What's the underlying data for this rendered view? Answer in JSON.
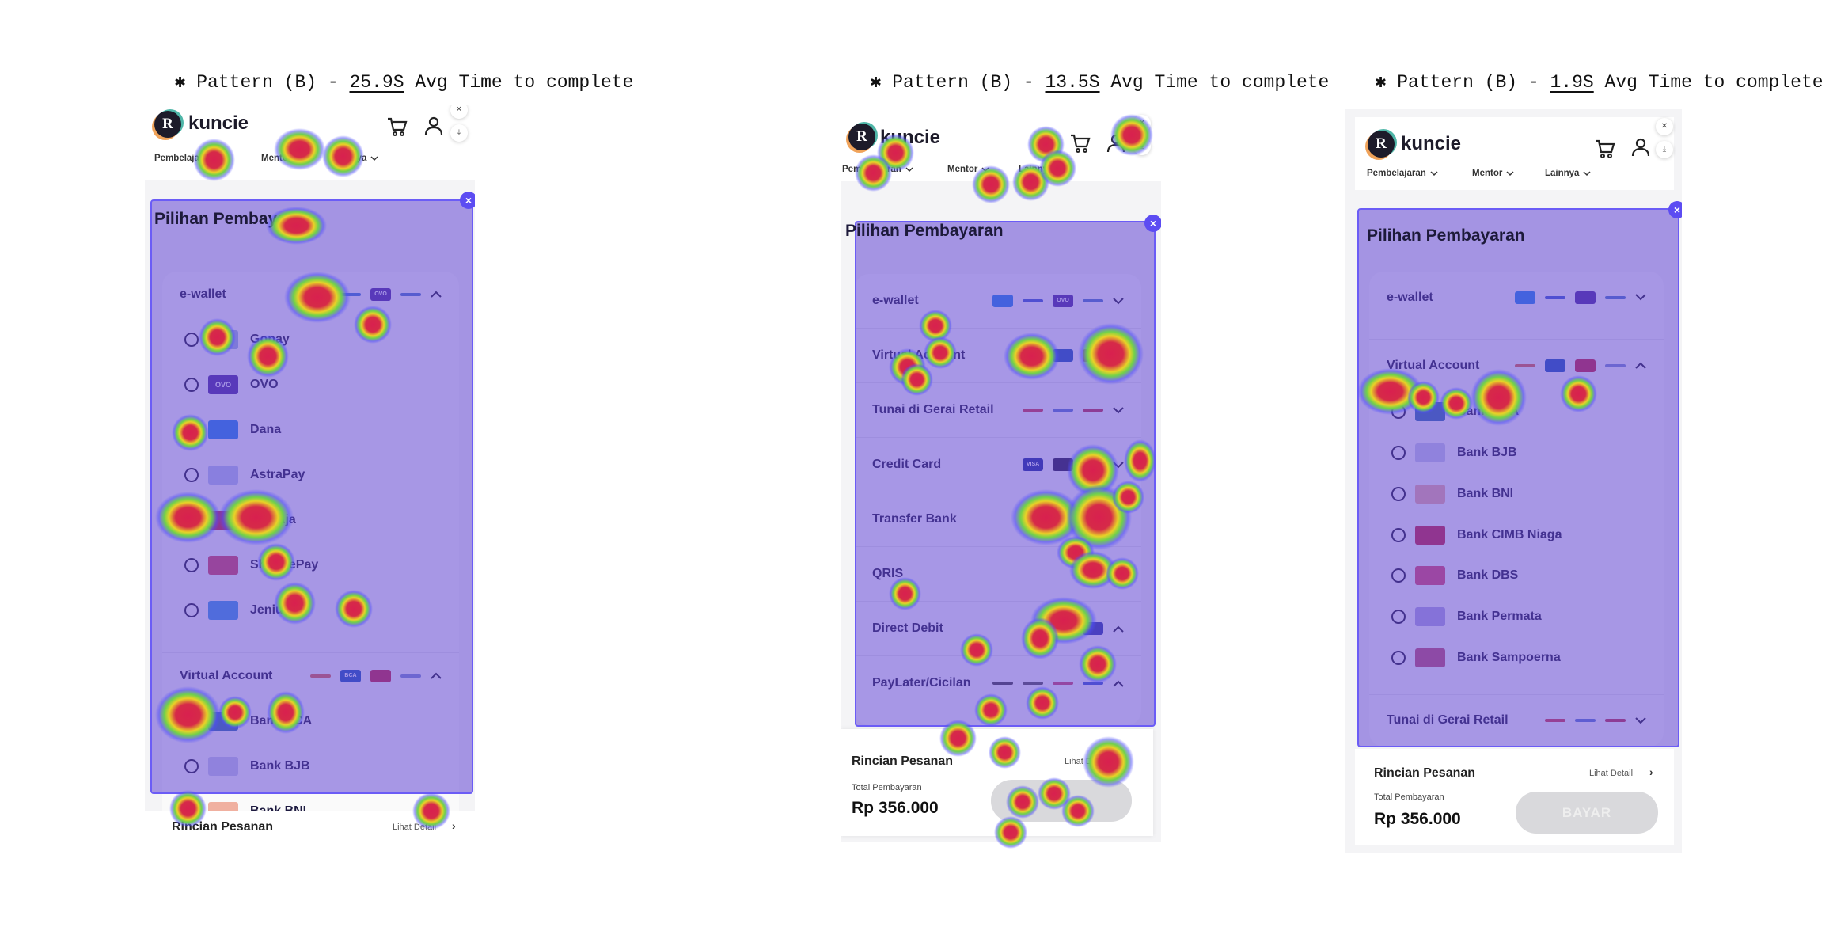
{
  "panels": [
    {
      "title_prefix": "✱ Pattern (B) - ",
      "time": "25.9S",
      "title_suffix": " Avg Time to complete",
      "app": {
        "brand": "kuncie",
        "nav": [
          "Pembelajaran",
          "Mentor",
          "Lainnya"
        ],
        "heading": "Pilihan Pembayaran",
        "sections": [
          {
            "label": "e-wallet",
            "expanded": true,
            "logos": [
              {
                "name": "dana",
                "style": "line",
                "color": "#3a7bd5"
              },
              {
                "name": "ovo",
                "style": "box",
                "color": "#4c2a9c",
                "text": "OVO"
              },
              {
                "name": "gopay",
                "style": "line",
                "color": "#4a78c9"
              }
            ],
            "items": [
              {
                "label": "Gopay",
                "logo": "gopay",
                "color": "#9fb8e0"
              },
              {
                "label": "OVO",
                "logo": "ovo",
                "color": "#4c2a9c",
                "text": "OVO"
              },
              {
                "label": "Dana",
                "logo": "dana",
                "color": "#1f86ea"
              },
              {
                "label": "AstraPay",
                "logo": "astrapay",
                "color": "#b9c6ee"
              },
              {
                "label": "LinkAja",
                "logo": "linkaja",
                "color": "#c81e3e"
              },
              {
                "label": "ShopeePay",
                "logo": "shopeepay",
                "color": "#d8455e"
              },
              {
                "label": "Jenius",
                "logo": "jenius",
                "color": "#3a9be6"
              }
            ]
          },
          {
            "label": "Virtual Account",
            "expanded": true,
            "logos": [
              {
                "name": "bni",
                "style": "line",
                "color": "#e0664a"
              },
              {
                "name": "bca",
                "style": "box",
                "color": "#1a56b8",
                "text": "BCA"
              },
              {
                "name": "cimb",
                "style": "box",
                "color": "#c8223f"
              },
              {
                "name": "bjb",
                "style": "line",
                "color": "#7a8fcf"
              }
            ],
            "items": [
              {
                "label": "Bank BCA",
                "logo": "bca",
                "color": "#2f6fb0"
              },
              {
                "label": "Bank BJB",
                "logo": "bjb",
                "color": "#c7cde8"
              },
              {
                "label": "Bank BNI",
                "logo": "bni",
                "color": "#f0b0a0"
              }
            ]
          }
        ],
        "footer": {
          "title": "Rincian Pesanan",
          "link": "Lihat Detail"
        }
      }
    },
    {
      "title_prefix": "✱ Pattern (B) - ",
      "time": "13.5S",
      "title_suffix": " Avg Time to complete",
      "app": {
        "brand": "kuncie",
        "nav": [
          "Pembelajaran",
          "Mentor",
          "Lainnya"
        ],
        "heading": "Pilihan Pembayaran",
        "sections": [
          {
            "label": "e-wallet",
            "expanded": false,
            "logos": [
              {
                "name": "dana",
                "style": "box",
                "color": "#1f86ea"
              },
              {
                "name": "astrapay",
                "style": "line",
                "color": "#3a5bd0"
              },
              {
                "name": "ovo",
                "style": "box",
                "color": "#4c2a9c",
                "text": "OVO"
              },
              {
                "name": "gopay",
                "style": "line",
                "color": "#4a78c9"
              }
            ],
            "items": []
          },
          {
            "label": "Virtual Account",
            "expanded": false,
            "logos": [
              {
                "name": "bni",
                "style": "line",
                "color": "#e0664a"
              },
              {
                "name": "bca",
                "style": "box",
                "color": "#1a56b8"
              },
              {
                "name": "cimb",
                "style": "box",
                "color": "#c8223f"
              }
            ],
            "items": []
          },
          {
            "label": "Tunai di Gerai Retail",
            "expanded": false,
            "logos": [
              {
                "name": "alfamart",
                "style": "line",
                "color": "#d63a4a"
              },
              {
                "name": "lawson",
                "style": "line",
                "color": "#5a7bd0"
              },
              {
                "name": "indomaret",
                "style": "line",
                "color": "#c0324a"
              }
            ],
            "items": []
          },
          {
            "label": "Credit Card",
            "expanded": false,
            "logos": [
              {
                "name": "visa",
                "style": "box",
                "color": "#1a2a9a",
                "text": "VISA"
              },
              {
                "name": "mastercard",
                "style": "box",
                "color": "#231a40"
              },
              {
                "name": "amex",
                "style": "box",
                "color": "#3a78d8"
              }
            ],
            "items": []
          },
          {
            "label": "Transfer Bank",
            "expanded": false,
            "logos": [
              {
                "name": "bank",
                "style": "line",
                "color": "#d04a5a"
              }
            ],
            "items": []
          },
          {
            "label": "QRIS",
            "expanded": false,
            "logos": [
              {
                "name": "qris",
                "style": "line",
                "color": "#222"
              }
            ],
            "items": []
          },
          {
            "label": "Direct Debit",
            "expanded": true,
            "logos": [
              {
                "name": "bri",
                "style": "box",
                "color": "#2a3aa8"
              }
            ],
            "items": []
          },
          {
            "label": "PayLater/Cicilan",
            "expanded": true,
            "logos": [
              {
                "name": "akulaku",
                "style": "line",
                "color": "#444"
              },
              {
                "name": "indodana",
                "style": "line",
                "color": "#555"
              },
              {
                "name": "kredivo",
                "style": "line",
                "color": "#d04a6a"
              },
              {
                "name": "atome",
                "style": "line",
                "color": "#3a5ad0"
              }
            ],
            "items": []
          }
        ],
        "footer": {
          "title": "Rincian Pesanan",
          "link": "Lihat Detail",
          "total_label": "Total Pembayaran",
          "total": "Rp 356.000"
        }
      }
    },
    {
      "title_prefix": "✱ Pattern (B) - ",
      "time": "1.9S",
      "title_suffix": " Avg Time to complete",
      "app": {
        "brand": "kuncie",
        "nav": [
          "Pembelajaran",
          "Mentor",
          "Lainnya"
        ],
        "heading": "Pilihan Pembayaran",
        "sections": [
          {
            "label": "e-wallet",
            "expanded": false,
            "logos": [
              {
                "name": "dana",
                "style": "box",
                "color": "#1f86ea"
              },
              {
                "name": "astrapay",
                "style": "line",
                "color": "#3a5bd0"
              },
              {
                "name": "ovo",
                "style": "box",
                "color": "#4c2a9c"
              },
              {
                "name": "gopay",
                "style": "line",
                "color": "#4a78c9"
              }
            ],
            "items": []
          },
          {
            "label": "Virtual Account",
            "expanded": true,
            "logos": [
              {
                "name": "bni",
                "style": "line",
                "color": "#e0664a"
              },
              {
                "name": "bca",
                "style": "box",
                "color": "#1a56b8"
              },
              {
                "name": "cimb",
                "style": "box",
                "color": "#c8223f"
              },
              {
                "name": "bjb",
                "style": "line",
                "color": "#7a8fcf"
              }
            ],
            "items": [
              {
                "label": "Bank BCA",
                "logo": "bca",
                "color": "#2f6fb0"
              },
              {
                "label": "Bank BJB",
                "logo": "bjb",
                "color": "#c7cde8"
              },
              {
                "label": "Bank BNI",
                "logo": "bni",
                "color": "#f0b0a0"
              },
              {
                "label": "Bank CIMB Niaga",
                "logo": "cimb",
                "color": "#c8223f"
              },
              {
                "label": "Bank DBS",
                "logo": "dbs",
                "color": "#e04a6a"
              },
              {
                "label": "Bank Permata",
                "logo": "permata",
                "color": "#b0a8e0"
              },
              {
                "label": "Bank Sampoerna",
                "logo": "sampoerna",
                "color": "#c05070"
              }
            ]
          },
          {
            "label": "Tunai di Gerai Retail",
            "expanded": false,
            "logos": [
              {
                "name": "alfamart",
                "style": "line",
                "color": "#d63a4a"
              },
              {
                "name": "lawson",
                "style": "line",
                "color": "#5a7bd0"
              },
              {
                "name": "indomaret",
                "style": "line",
                "color": "#c0324a"
              }
            ],
            "items": []
          }
        ],
        "footer": {
          "title": "Rincian Pesanan",
          "link": "Lihat Detail",
          "total_label": "Total Pembayaran",
          "total": "Rp 356.000",
          "pay_button": "BAYAR"
        }
      }
    }
  ]
}
